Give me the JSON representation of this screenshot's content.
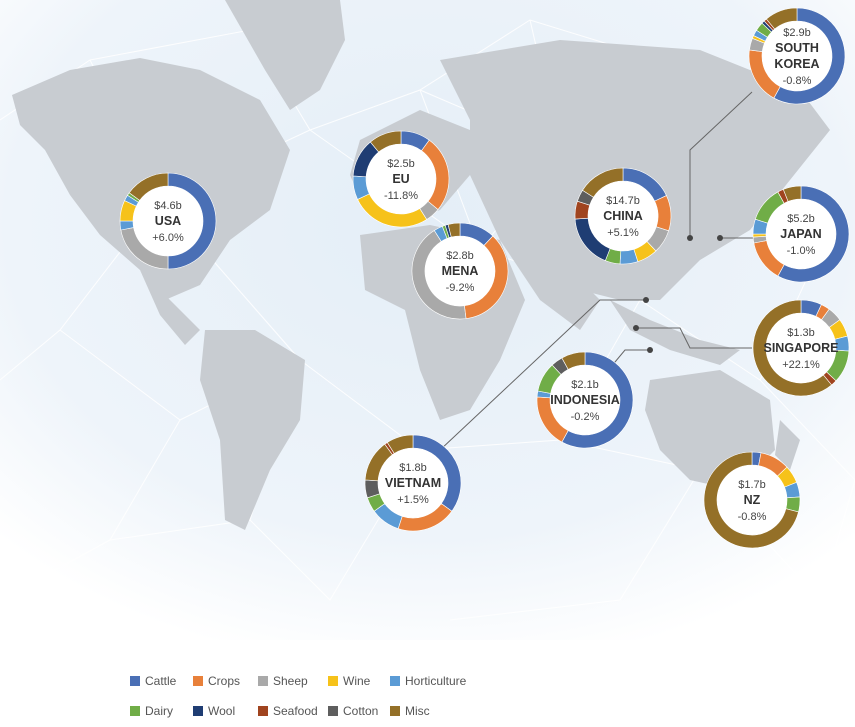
{
  "chart_data": {
    "type": "pie",
    "legend_position": "bottom-left",
    "categories": [
      "Cattle",
      "Crops",
      "Sheep",
      "Wine",
      "Horticulture",
      "Dairy",
      "Wool",
      "Seafood",
      "Cotton",
      "Misc"
    ],
    "colors": {
      "Cattle": "#4a6fb5",
      "Crops": "#e8803a",
      "Sheep": "#a9a9a9",
      "Wine": "#f6c21a",
      "Horticulture": "#5b9bd5",
      "Dairy": "#70ad47",
      "Wool": "#1f3d73",
      "Seafood": "#a0441f",
      "Cotton": "#5e5e5e",
      "Misc": "#947028"
    },
    "markets": [
      {
        "name": "USA",
        "value": "$4.6b",
        "change": "+6.0%",
        "slices": [
          [
            "Cattle",
            50
          ],
          [
            "Sheep",
            22
          ],
          [
            "Horticulture",
            3
          ],
          [
            "Wine",
            7
          ],
          [
            "Horticulture",
            2
          ],
          [
            "Dairy",
            1
          ],
          [
            "Misc",
            15
          ]
        ]
      },
      {
        "name": "EU",
        "value": "$2.5b",
        "change": "-11.8%",
        "slices": [
          [
            "Cattle",
            10
          ],
          [
            "Crops",
            26
          ],
          [
            "Sheep",
            5
          ],
          [
            "Wine",
            27
          ],
          [
            "Horticulture",
            8
          ],
          [
            "Wool",
            13
          ],
          [
            "Misc",
            11
          ]
        ]
      },
      {
        "name": "MENA",
        "value": "$2.8b",
        "change": "-9.2%",
        "slices": [
          [
            "Cattle",
            12
          ],
          [
            "Crops",
            36
          ],
          [
            "Sheep",
            43
          ],
          [
            "Horticulture",
            3
          ],
          [
            "Dairy",
            1
          ],
          [
            "Wool",
            1
          ],
          [
            "Misc",
            4
          ]
        ]
      },
      {
        "name": "CHINA",
        "value": "$14.7b",
        "change": "+5.1%",
        "slices": [
          [
            "Cattle",
            18
          ],
          [
            "Crops",
            12
          ],
          [
            "Sheep",
            8
          ],
          [
            "Wine",
            7
          ],
          [
            "Horticulture",
            6
          ],
          [
            "Dairy",
            5
          ],
          [
            "Wool",
            18
          ],
          [
            "Seafood",
            6
          ],
          [
            "Cotton",
            4
          ],
          [
            "Misc",
            16
          ]
        ]
      },
      {
        "name": "SOUTH KOREA",
        "value": "$2.9b",
        "change": "-0.8%",
        "slices": [
          [
            "Cattle",
            58
          ],
          [
            "Crops",
            19
          ],
          [
            "Sheep",
            4
          ],
          [
            "Wine",
            1
          ],
          [
            "Horticulture",
            2
          ],
          [
            "Dairy",
            3
          ],
          [
            "Wool",
            1
          ],
          [
            "Seafood",
            1
          ],
          [
            "Misc",
            11
          ]
        ]
      },
      {
        "name": "JAPAN",
        "value": "$5.2b",
        "change": "-1.0%",
        "slices": [
          [
            "Cattle",
            58
          ],
          [
            "Crops",
            14
          ],
          [
            "Sheep",
            2
          ],
          [
            "Wine",
            1
          ],
          [
            "Horticulture",
            5
          ],
          [
            "Dairy",
            12
          ],
          [
            "Seafood",
            2
          ],
          [
            "Misc",
            6
          ]
        ]
      },
      {
        "name": "SINGAPORE",
        "value": "$1.3b",
        "change": "+22.1%",
        "slices": [
          [
            "Cattle",
            7
          ],
          [
            "Crops",
            3
          ],
          [
            "Sheep",
            5
          ],
          [
            "Wine",
            6
          ],
          [
            "Horticulture",
            5
          ],
          [
            "Dairy",
            11
          ],
          [
            "Seafood",
            2
          ],
          [
            "Misc",
            61
          ]
        ]
      },
      {
        "name": "INDONESIA",
        "value": "$2.1b",
        "change": "-0.2%",
        "slices": [
          [
            "Cattle",
            58
          ],
          [
            "Crops",
            18
          ],
          [
            "Horticulture",
            2
          ],
          [
            "Dairy",
            10
          ],
          [
            "Cotton",
            4
          ],
          [
            "Misc",
            8
          ]
        ]
      },
      {
        "name": "VIETNAM",
        "value": "$1.8b",
        "change": "+1.5%",
        "slices": [
          [
            "Cattle",
            35
          ],
          [
            "Crops",
            20
          ],
          [
            "Horticulture",
            10
          ],
          [
            "Dairy",
            5
          ],
          [
            "Cotton",
            6
          ],
          [
            "Misc",
            14
          ],
          [
            "Seafood",
            1
          ],
          [
            "Misc",
            9
          ]
        ]
      },
      {
        "name": "NZ",
        "value": "$1.7b",
        "change": "-0.8%",
        "slices": [
          [
            "Cattle",
            3
          ],
          [
            "Crops",
            10
          ],
          [
            "Wine",
            6
          ],
          [
            "Horticulture",
            5
          ],
          [
            "Dairy",
            5
          ],
          [
            "Misc",
            71
          ]
        ]
      }
    ]
  }
}
